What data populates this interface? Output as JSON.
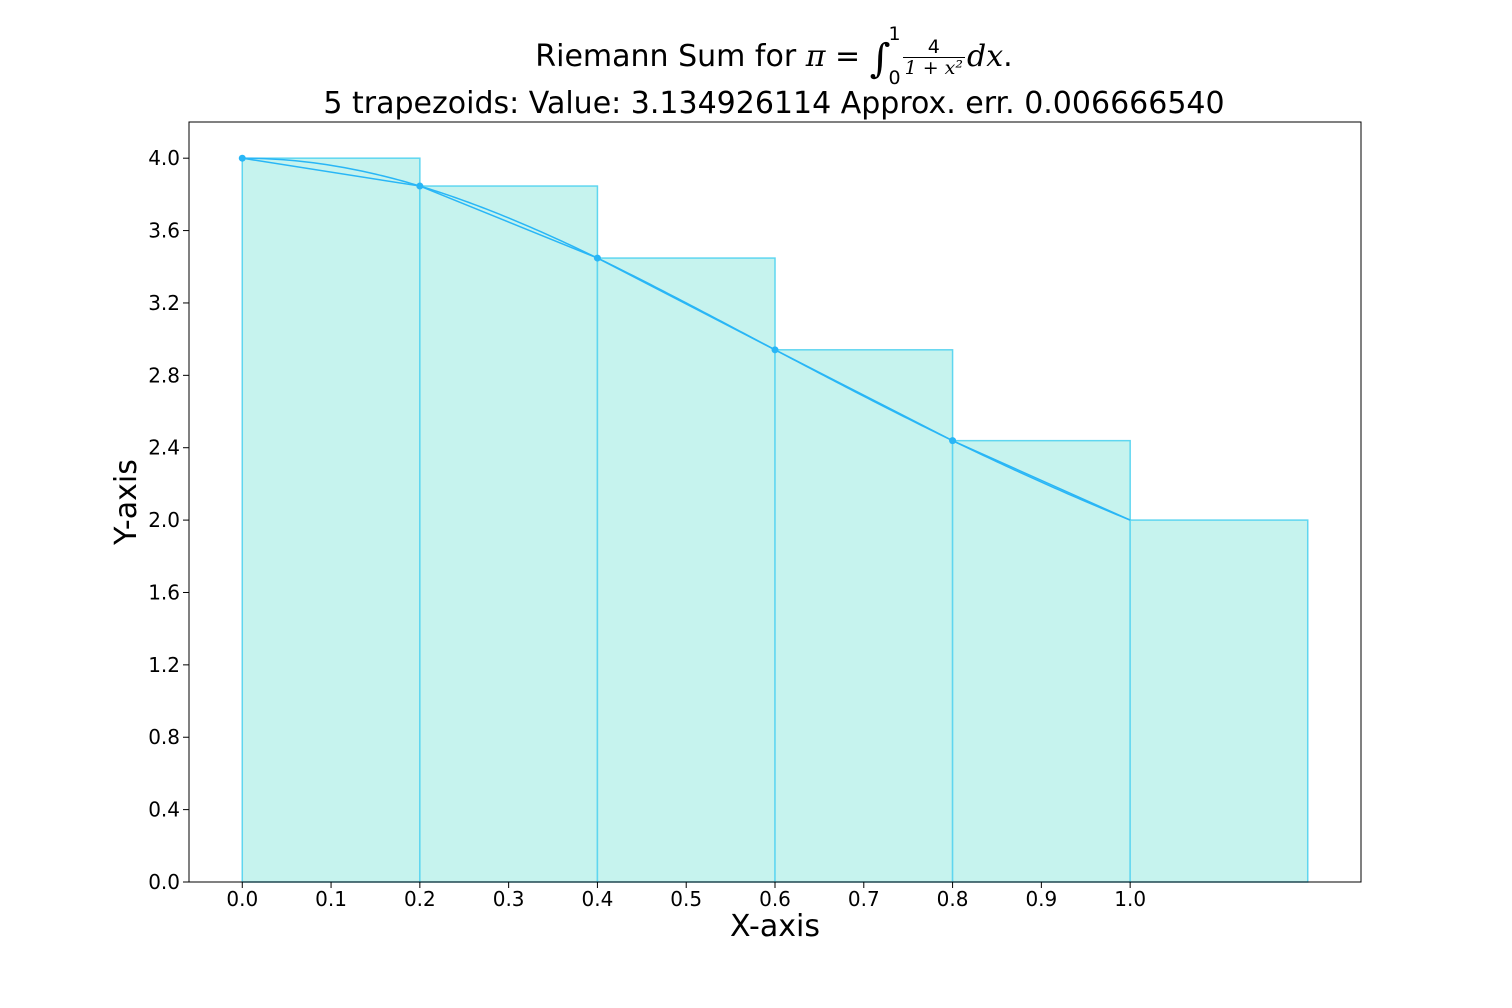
{
  "chart_data": {
    "type": "bar",
    "title": {
      "prefix": "Riemann Sum for ",
      "pi": "π",
      "equals": " = ",
      "integral": "∫",
      "upper": "1",
      "lower": "0",
      "numerator": "4",
      "denominator": "1 + x²",
      "differential": "dx",
      "suffix": "."
    },
    "subtitle": "5 trapezoids: Value: 3.134926114 Approx. err. 0.006666540",
    "xlabel": "X-axis",
    "ylabel": "Y-axis",
    "xlim": [
      -0.06,
      1.26
    ],
    "ylim": [
      0,
      4.2
    ],
    "xticks": [
      "0.0",
      "0.1",
      "0.2",
      "0.3",
      "0.4",
      "0.5",
      "0.6",
      "0.7",
      "0.8",
      "0.9",
      "1.0"
    ],
    "yticks": [
      "0.0",
      "0.4",
      "0.8",
      "1.2",
      "1.6",
      "2.0",
      "2.4",
      "2.8",
      "3.2",
      "3.6",
      "4.0"
    ],
    "bars": {
      "x_left": [
        0.0,
        0.2,
        0.4,
        0.6,
        0.8,
        1.0
      ],
      "width": 0.2,
      "heights": [
        4.0,
        3.846,
        3.448,
        2.941,
        2.439,
        2.0
      ]
    },
    "curve": {
      "function": "4/(1+x^2)",
      "x_range": [
        0.0,
        1.0
      ]
    },
    "trapezoid_line": {
      "x": [
        0.0,
        0.2,
        0.4,
        0.6,
        0.8,
        1.0
      ],
      "y": [
        4.0,
        3.846,
        3.448,
        2.941,
        2.439,
        2.0
      ]
    },
    "markers": {
      "x": [
        0.0,
        0.2,
        0.4,
        0.6,
        0.8
      ],
      "y": [
        4.0,
        3.846,
        3.448,
        2.941,
        2.439
      ]
    },
    "grid": false,
    "colors": {
      "bar_fill": "#c6f3ee",
      "bar_edge": "#5fd6f0",
      "line": "#29b6f6",
      "marker": "#29b6f6"
    }
  }
}
